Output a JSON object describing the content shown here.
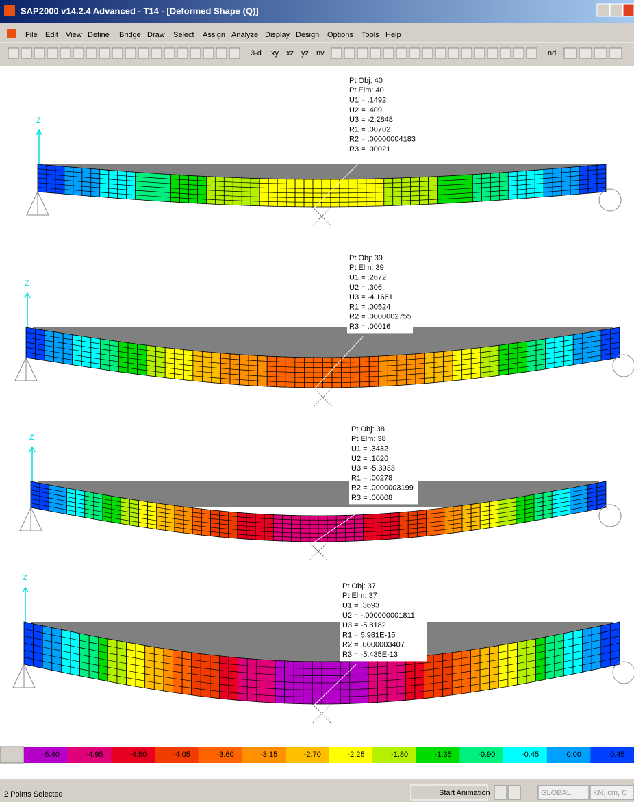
{
  "window": {
    "title": "SAP2000 v14.2.4 Advanced  - T14 - [Deformed Shape (Q)]"
  },
  "menu": [
    "File",
    "Edit",
    "View",
    "Define",
    "Bridge",
    "Draw",
    "Select",
    "Assign",
    "Analyze",
    "Display",
    "Design",
    "Options",
    "Tools",
    "Help"
  ],
  "toolbar": [
    "3-d",
    "xy",
    "xz",
    "yz",
    "nv",
    "nd"
  ],
  "panels": [
    {
      "axis": "Z",
      "lines": [
        "Pt Obj: 40",
        "Pt Elm: 40",
        "U1 = .1492",
        "U2 = .409",
        "U3 = -2.2848",
        "R1 = .00702",
        "R2 = .00000004183",
        "R3 = .00021"
      ]
    },
    {
      "axis": "Z",
      "lines": [
        "Pt Obj: 39",
        "Pt Elm: 39",
        "U1 = .2672",
        "U2 = .306",
        "U3 = -4.1661",
        "R1 = .00524",
        "R2 = .0000002755",
        "R3 = .00016"
      ]
    },
    {
      "axis": "Z",
      "lines": [
        "Pt Obj: 38",
        "Pt Elm: 38",
        "U1 = .3432",
        "U2 = .1626",
        "U3 = -5.3933",
        "R1 = .00278",
        "R2 = .0000003199",
        "R3 = .00008"
      ]
    },
    {
      "axis": "Z",
      "lines": [
        "Pt Obj: 37",
        "Pt Elm: 37",
        "U1 = .3693",
        "U2 = -.000000001811",
        "U3 = -5.8182",
        "R1 = 5.981E-15",
        "R2 = .0000003407",
        "R3 = -5.435E-13"
      ]
    }
  ],
  "legend": [
    "-5.40",
    "-4.95",
    "-4.50",
    "-4.05",
    "-3.60",
    "-3.15",
    "-2.70",
    "-2.25",
    "-1.80",
    "-1.35",
    "-0.90",
    "-0.45",
    "0.00",
    "0.45"
  ],
  "status": {
    "selection": "2 Points Selected",
    "animation": "Start Animation",
    "coordinate_system": "GLOBAL",
    "units": "KN, cm, C"
  }
}
